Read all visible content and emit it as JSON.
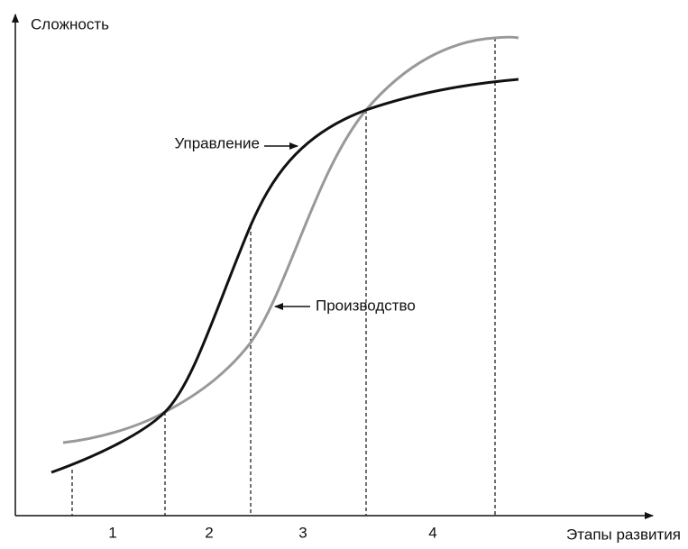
{
  "y_axis_label": "Сложность",
  "x_axis_label": "Этапы развития",
  "curves": [
    {
      "label": "Управление"
    },
    {
      "label": "Производство"
    }
  ],
  "stages": [
    "1",
    "2",
    "3",
    "4"
  ]
}
